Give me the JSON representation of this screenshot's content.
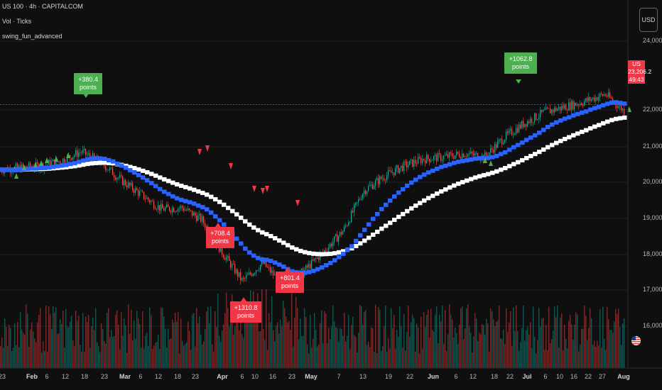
{
  "legend": {
    "symbol_line": "US 100 · 4h · CAPITALCOM",
    "indicator_1": "Vol · Ticks",
    "indicator_2": "swing_fun_advanced"
  },
  "currency_button": "USD",
  "price_axis": {
    "ticks": [
      "24,000.0",
      "22,000.0",
      "21,000.0",
      "20,000.0",
      "19,000.0",
      "18,000.0",
      "17,000.0",
      "16,000.0"
    ],
    "price_tag_symbol": "US 100",
    "price_tag_value": "23,206.2",
    "price_tag_countdown": "49:43"
  },
  "time_axis": {
    "ticks": [
      {
        "label": "23",
        "month": false
      },
      {
        "label": "Feb",
        "month": true
      },
      {
        "label": "6",
        "month": false
      },
      {
        "label": "12",
        "month": false
      },
      {
        "label": "18",
        "month": false
      },
      {
        "label": "23",
        "month": false
      },
      {
        "label": "Mar",
        "month": true
      },
      {
        "label": "6",
        "month": false
      },
      {
        "label": "12",
        "month": false
      },
      {
        "label": "18",
        "month": false
      },
      {
        "label": "23",
        "month": false
      },
      {
        "label": "Apr",
        "month": true
      },
      {
        "label": "6",
        "month": false
      },
      {
        "label": "10",
        "month": false
      },
      {
        "label": "16",
        "month": false
      },
      {
        "label": "23",
        "month": false
      },
      {
        "label": "May",
        "month": true
      },
      {
        "label": "7",
        "month": false
      },
      {
        "label": "13",
        "month": false
      },
      {
        "label": "19",
        "month": false
      },
      {
        "label": "22",
        "month": false
      },
      {
        "label": "Jun",
        "month": true
      },
      {
        "label": "6",
        "month": false
      },
      {
        "label": "12",
        "month": false
      },
      {
        "label": "18",
        "month": false
      },
      {
        "label": "22",
        "month": false
      },
      {
        "label": "Jul",
        "month": true
      },
      {
        "label": "6",
        "month": false
      },
      {
        "label": "10",
        "month": false
      },
      {
        "label": "16",
        "month": false
      },
      {
        "label": "22",
        "month": false
      },
      {
        "label": "27",
        "month": false
      },
      {
        "label": "Aug",
        "month": true
      }
    ]
  },
  "annotations": [
    {
      "text": "+380.4 points",
      "color": "green"
    },
    {
      "text": "+1062.8 points",
      "color": "green"
    },
    {
      "text": "+708.4 points",
      "color": "red"
    },
    {
      "text": "+1310.8 points",
      "color": "red"
    },
    {
      "text": "+801.4 points",
      "color": "red"
    }
  ],
  "colors": {
    "background": "#0f0f0f",
    "ma_fast": "#2962ff",
    "ma_slow": "#ffffff",
    "up": "#26a69a",
    "down": "#ef5350",
    "buy_signal": "#4caf50",
    "sell_signal": "#f23645"
  },
  "chart_data": {
    "type": "line",
    "symbol": "US 100",
    "timeframe": "4h",
    "price_range": [
      15500,
      24500
    ],
    "last_price": 23206.2,
    "series": [
      {
        "name": "",
        "values": [
          21400,
          21450,
          21500,
          21650,
          21900,
          21600,
          21100,
          20700,
          20300,
          20350,
          20000,
          19100,
          18300,
          18800,
          18200,
          18550,
          19100,
          19700,
          20800,
          21200,
          21500,
          21700,
          21750,
          21850,
          21750,
          22300,
          22700,
          23000,
          23150,
          23300,
          23500,
          23000
        ]
      }
    ],
    "volume_panel": true
  }
}
